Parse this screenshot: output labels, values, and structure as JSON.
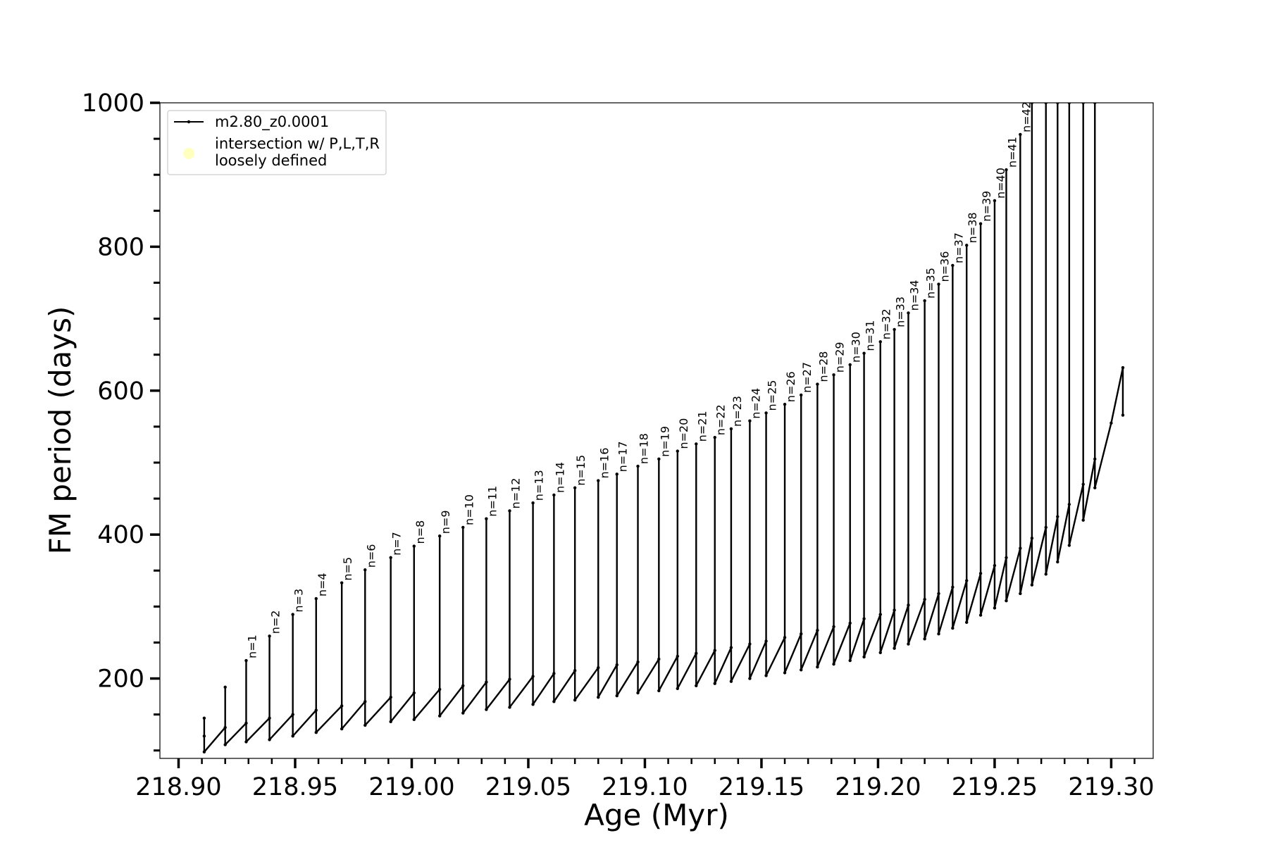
{
  "chart_data": {
    "type": "line",
    "xlabel": "Age (Myr)",
    "ylabel": "FM period (days)",
    "xlim": [
      218.892,
      219.318
    ],
    "ylim": [
      89,
      1000
    ],
    "xticks": [
      {
        "value": 218.9,
        "label": "218.90"
      },
      {
        "value": 218.95,
        "label": "218.95"
      },
      {
        "value": 219.0,
        "label": "219.00"
      },
      {
        "value": 219.05,
        "label": "219.05"
      },
      {
        "value": 219.1,
        "label": "219.10"
      },
      {
        "value": 219.15,
        "label": "219.15"
      },
      {
        "value": 219.2,
        "label": "219.20"
      },
      {
        "value": 219.25,
        "label": "219.25"
      },
      {
        "value": 219.3,
        "label": "219.30"
      }
    ],
    "xminorticks": [
      218.91,
      218.92,
      218.93,
      218.94,
      218.96,
      218.97,
      218.98,
      218.99,
      219.01,
      219.02,
      219.03,
      219.04,
      219.06,
      219.07,
      219.08,
      219.09,
      219.11,
      219.12,
      219.13,
      219.14,
      219.16,
      219.17,
      219.18,
      219.19,
      219.21,
      219.22,
      219.23,
      219.24,
      219.26,
      219.27,
      219.28,
      219.29,
      219.31
    ],
    "yticks": [
      200,
      400,
      600,
      800,
      1000
    ],
    "yminorticks": [
      100,
      150,
      250,
      300,
      350,
      450,
      500,
      550,
      650,
      700,
      750,
      850,
      900,
      950
    ],
    "legend": "upper left",
    "series": [
      {
        "name": "m2.80_z0.0001",
        "color": "#000000",
        "x": [
          218.911,
          218.911,
          218.911,
          218.92,
          218.92,
          218.92,
          218.929,
          218.929,
          218.929,
          218.939,
          218.939,
          218.939,
          218.949,
          218.949,
          218.949,
          218.959,
          218.959,
          218.959,
          218.97,
          218.97,
          218.97,
          218.98,
          218.98,
          218.98,
          218.991,
          218.991,
          218.991,
          219.001,
          219.001,
          219.001,
          219.012,
          219.012,
          219.012,
          219.022,
          219.022,
          219.022,
          219.032,
          219.032,
          219.032,
          219.042,
          219.042,
          219.042,
          219.052,
          219.052,
          219.052,
          219.061,
          219.061,
          219.061,
          219.07,
          219.07,
          219.07,
          219.08,
          219.08,
          219.08,
          219.088,
          219.088,
          219.088,
          219.097,
          219.097,
          219.097,
          219.106,
          219.106,
          219.106,
          219.114,
          219.114,
          219.114,
          219.122,
          219.122,
          219.122,
          219.13,
          219.13,
          219.13,
          219.137,
          219.137,
          219.137,
          219.145,
          219.145,
          219.145,
          219.152,
          219.152,
          219.152,
          219.16,
          219.16,
          219.16,
          219.167,
          219.167,
          219.167,
          219.174,
          219.174,
          219.174,
          219.181,
          219.181,
          219.181,
          219.188,
          219.188,
          219.188,
          219.194,
          219.194,
          219.194,
          219.201,
          219.201,
          219.201,
          219.207,
          219.207,
          219.207,
          219.213,
          219.213,
          219.213,
          219.22,
          219.22,
          219.22,
          219.226,
          219.226,
          219.226,
          219.232,
          219.232,
          219.232,
          219.238,
          219.238,
          219.238,
          219.244,
          219.244,
          219.244,
          219.25,
          219.25,
          219.25,
          219.255,
          219.255,
          219.255,
          219.261,
          219.261,
          219.261,
          219.266,
          219.266,
          219.266,
          219.272,
          219.272,
          219.272,
          219.277,
          219.277,
          219.277,
          219.282,
          219.282,
          219.282,
          219.288,
          219.288,
          219.288,
          219.293,
          219.293,
          219.293,
          219.3,
          219.305,
          219.305
        ],
        "values": [
          120,
          145,
          98,
          132,
          188,
          108,
          138,
          225,
          112,
          145,
          259,
          115,
          150,
          289,
          120,
          156,
          311,
          125,
          162,
          333,
          130,
          168,
          351,
          135,
          174,
          368,
          140,
          180,
          384,
          143,
          185,
          398,
          148,
          190,
          410,
          152,
          195,
          422,
          157,
          199,
          433,
          160,
          203,
          444,
          164,
          207,
          455,
          168,
          211,
          465,
          170,
          215,
          475,
          174,
          219,
          484,
          176,
          223,
          495,
          180,
          227,
          505,
          183,
          231,
          516,
          186,
          235,
          526,
          190,
          239,
          535,
          193,
          243,
          547,
          196,
          248,
          558,
          200,
          252,
          569,
          204,
          257,
          581,
          208,
          262,
          594,
          212,
          267,
          609,
          216,
          272,
          622,
          220,
          277,
          636,
          225,
          283,
          652,
          230,
          289,
          668,
          236,
          295,
          685,
          242,
          302,
          708,
          248,
          310,
          725,
          255,
          318,
          748,
          262,
          327,
          774,
          270,
          336,
          802,
          278,
          346,
          832,
          288,
          357,
          864,
          298,
          368,
          907,
          308,
          381,
          956,
          318,
          395,
          1000,
          330,
          410,
          1000,
          345,
          425,
          1000,
          362,
          442,
          1000,
          385,
          470,
          1000,
          420,
          505,
          1000,
          465,
          555,
          632,
          566
        ]
      },
      {
        "name": "intersection w/ P,L,T,R\nloosely defined",
        "color": "#ffffc0",
        "x": [],
        "values": []
      }
    ],
    "annotations": [
      {
        "text": "n=1",
        "x": 218.929,
        "y": 225
      },
      {
        "text": "n=2",
        "x": 218.939,
        "y": 259
      },
      {
        "text": "n=3",
        "x": 218.949,
        "y": 289
      },
      {
        "text": "n=4",
        "x": 218.959,
        "y": 311
      },
      {
        "text": "n=5",
        "x": 218.97,
        "y": 333
      },
      {
        "text": "n=6",
        "x": 218.98,
        "y": 351
      },
      {
        "text": "n=7",
        "x": 218.991,
        "y": 368
      },
      {
        "text": "n=8",
        "x": 219.001,
        "y": 384
      },
      {
        "text": "n=9",
        "x": 219.012,
        "y": 398
      },
      {
        "text": "n=10",
        "x": 219.022,
        "y": 410
      },
      {
        "text": "n=11",
        "x": 219.032,
        "y": 422
      },
      {
        "text": "n=12",
        "x": 219.042,
        "y": 433
      },
      {
        "text": "n=13",
        "x": 219.052,
        "y": 444
      },
      {
        "text": "n=14",
        "x": 219.061,
        "y": 455
      },
      {
        "text": "n=15",
        "x": 219.07,
        "y": 465
      },
      {
        "text": "n=16",
        "x": 219.08,
        "y": 475
      },
      {
        "text": "n=17",
        "x": 219.088,
        "y": 484
      },
      {
        "text": "n=18",
        "x": 219.097,
        "y": 495
      },
      {
        "text": "n=19",
        "x": 219.106,
        "y": 505
      },
      {
        "text": "n=20",
        "x": 219.114,
        "y": 516
      },
      {
        "text": "n=21",
        "x": 219.122,
        "y": 526
      },
      {
        "text": "n=22",
        "x": 219.13,
        "y": 535
      },
      {
        "text": "n=23",
        "x": 219.137,
        "y": 547
      },
      {
        "text": "n=24",
        "x": 219.145,
        "y": 558
      },
      {
        "text": "n=25",
        "x": 219.152,
        "y": 569
      },
      {
        "text": "n=26",
        "x": 219.16,
        "y": 581
      },
      {
        "text": "n=27",
        "x": 219.167,
        "y": 594
      },
      {
        "text": "n=28",
        "x": 219.174,
        "y": 609
      },
      {
        "text": "n=29",
        "x": 219.181,
        "y": 622
      },
      {
        "text": "n=30",
        "x": 219.188,
        "y": 636
      },
      {
        "text": "n=31",
        "x": 219.194,
        "y": 652
      },
      {
        "text": "n=32",
        "x": 219.201,
        "y": 668
      },
      {
        "text": "n=33",
        "x": 219.207,
        "y": 685
      },
      {
        "text": "n=34",
        "x": 219.213,
        "y": 708
      },
      {
        "text": "n=35",
        "x": 219.22,
        "y": 725
      },
      {
        "text": "n=36",
        "x": 219.226,
        "y": 748
      },
      {
        "text": "n=37",
        "x": 219.232,
        "y": 774
      },
      {
        "text": "n=38",
        "x": 219.238,
        "y": 802
      },
      {
        "text": "n=39",
        "x": 219.244,
        "y": 832
      },
      {
        "text": "n=40",
        "x": 219.25,
        "y": 864
      },
      {
        "text": "n=41",
        "x": 219.255,
        "y": 907
      },
      {
        "text": "n=42",
        "x": 219.261,
        "y": 956
      }
    ]
  }
}
